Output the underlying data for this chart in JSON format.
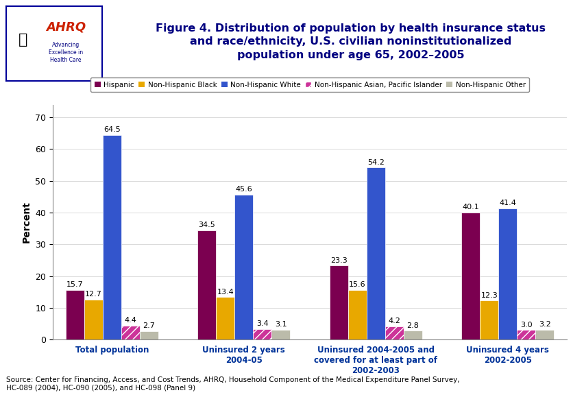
{
  "title": "Figure 4. Distribution of population by health insurance status\nand race/ethnicity, U.S. civilian noninstitutionalized\npopulation under age 65, 2002–2005",
  "ylabel": "Percent",
  "yticks": [
    0,
    10,
    20,
    30,
    40,
    50,
    60,
    70
  ],
  "ylim": [
    0,
    74
  ],
  "categories": [
    "Total population",
    "Uninsured 2 years\n2004-05",
    "Uninsured 2004-2005 and\ncovered for at least part of\n2002-2003",
    "Uninsured 4 years\n2002-2005"
  ],
  "series": [
    {
      "name": "Hispanic",
      "color": "#7B0050",
      "hatch": null,
      "values": [
        15.7,
        34.5,
        23.3,
        40.1
      ]
    },
    {
      "name": "Non-Hispanic Black",
      "color": "#E8A800",
      "hatch": null,
      "values": [
        12.7,
        13.4,
        15.6,
        12.3
      ]
    },
    {
      "name": "Non-Hispanic White",
      "color": "#3355CC",
      "hatch": null,
      "values": [
        64.5,
        45.6,
        54.2,
        41.4
      ]
    },
    {
      "name": "Non-Hispanic Asian, Pacific Islander",
      "color": "#CC3399",
      "hatch": "///",
      "values": [
        4.4,
        3.4,
        4.2,
        3.0
      ]
    },
    {
      "name": "Non-Hispanic Other",
      "color": "#BBBBAA",
      "hatch": null,
      "values": [
        2.7,
        3.1,
        2.8,
        3.2
      ]
    }
  ],
  "source_text": "Source: Center for Financing, Access, and Cost Trends, AHRQ, Household Component of the Medical Expenditure Panel Survey,\nHC-089 (2004), HC-090 (2005), and HC-098 (Panel 9)",
  "background_color": "#FFFFFF",
  "header_bg": "#D8E8F8",
  "bar_width": 0.14,
  "title_color": "#000080",
  "title_fontsize": 11.5,
  "ylabel_fontsize": 10,
  "tick_fontsize": 9,
  "label_fontsize": 8,
  "source_fontsize": 7.5,
  "legend_fontsize": 7.5,
  "xticklabel_fontsize": 8.5,
  "header_line_color": "#000099",
  "border_color": "#000099"
}
